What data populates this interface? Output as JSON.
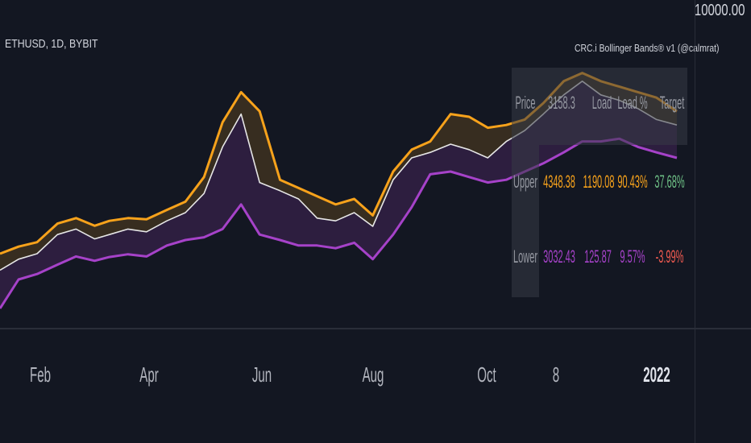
{
  "header": {
    "symbol": "ETHUSD, 1D, BYBIT",
    "indicator": "CRC.i Bollinger Bands® v1 (@calmrat)",
    "price_scale_label": "10000.00"
  },
  "colors": {
    "background": "#131722",
    "upper_band": "#f7a21b",
    "lower_band": "#a642c9",
    "price": "#e6e6e6",
    "positive": "#6dbf85",
    "negative": "#f05a50",
    "label": "#9598a1"
  },
  "table": {
    "header": [
      "Price",
      "3158.3",
      "Load",
      "Load %",
      "Target"
    ],
    "rows": [
      {
        "label": "Upper",
        "price": "4348.38",
        "load": "1190.08",
        "load_pct": "90.43%",
        "target": "37.68%"
      },
      {
        "label": "Lower",
        "price": "3032.43",
        "load": "125.87",
        "load_pct": "9.57%",
        "target": "-3.99%"
      }
    ]
  },
  "chart_data": {
    "type": "line",
    "x_axis_labels": [
      "Feb",
      "Apr",
      "Jun",
      "Aug",
      "Oct",
      "8",
      "2022"
    ],
    "x": [
      "2021-01-01",
      "2021-01-11",
      "2021-01-21",
      "2021-02-01",
      "2021-02-11",
      "2021-02-21",
      "2021-03-01",
      "2021-03-11",
      "2021-03-21",
      "2021-04-01",
      "2021-04-11",
      "2021-04-21",
      "2021-05-01",
      "2021-05-11",
      "2021-05-21",
      "2021-06-01",
      "2021-06-11",
      "2021-06-21",
      "2021-07-01",
      "2021-07-11",
      "2021-07-21",
      "2021-08-01",
      "2021-08-11",
      "2021-08-21",
      "2021-09-01",
      "2021-09-11",
      "2021-09-21",
      "2021-10-01",
      "2021-10-11",
      "2021-10-21",
      "2021-11-01",
      "2021-11-11",
      "2021-11-21",
      "2021-12-01",
      "2021-12-11",
      "2021-12-21",
      "2022-01-01"
    ],
    "series": [
      {
        "name": "Upper",
        "values": [
          1350,
          1480,
          1560,
          1900,
          2000,
          1860,
          1950,
          2000,
          1980,
          2150,
          2300,
          2750,
          3750,
          4300,
          3950,
          2700,
          2550,
          2400,
          2250,
          2350,
          2050,
          2850,
          3250,
          3400,
          3900,
          3850,
          3650,
          3700,
          3800,
          4100,
          4500,
          4650,
          4500,
          4400,
          4300,
          4200,
          3950
        ]
      },
      {
        "name": "Price",
        "values": [
          1050,
          1250,
          1350,
          1700,
          1800,
          1620,
          1700,
          1800,
          1750,
          1950,
          2100,
          2450,
          3300,
          3900,
          2650,
          2500,
          2350,
          2000,
          1950,
          2100,
          1850,
          2700,
          3100,
          3200,
          3350,
          3250,
          3100,
          3400,
          3600,
          3900,
          4250,
          4500,
          4250,
          4150,
          4000,
          3800,
          3700
        ]
      },
      {
        "name": "Lower",
        "values": [
          350,
          880,
          980,
          1150,
          1300,
          1220,
          1290,
          1340,
          1300,
          1500,
          1600,
          1650,
          1800,
          2250,
          1700,
          1600,
          1500,
          1500,
          1450,
          1550,
          1250,
          1700,
          2200,
          2800,
          2850,
          2750,
          2650,
          2700,
          2850,
          3000,
          3200,
          3400,
          3400,
          3450,
          3300,
          3200,
          3100
        ]
      }
    ],
    "ylim": [
      100,
      5100
    ],
    "grid": false,
    "legend": "none"
  }
}
